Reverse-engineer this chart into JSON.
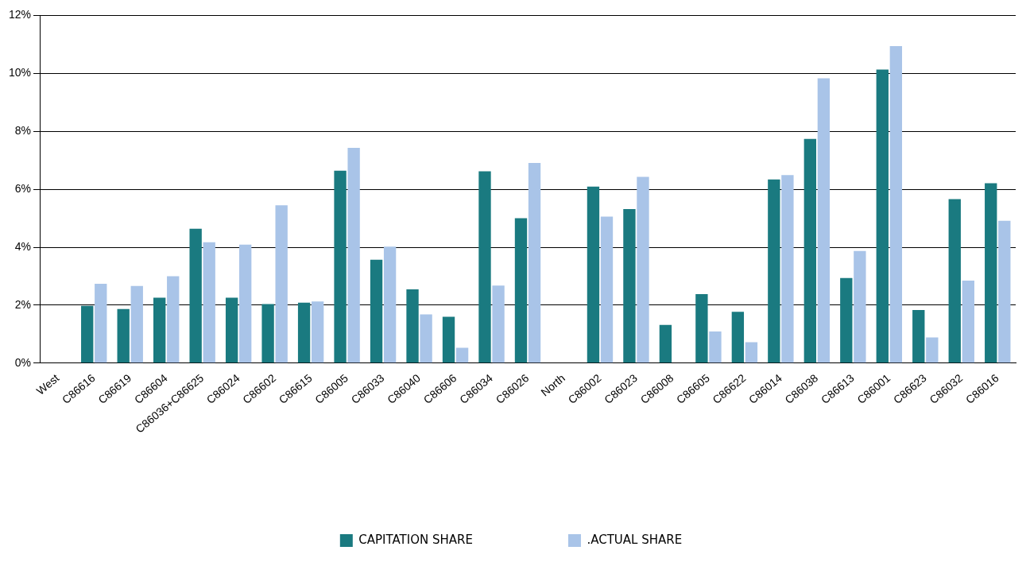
{
  "chart_data": {
    "type": "bar",
    "categories": [
      "West",
      "C86616",
      "C86619",
      "C86604",
      "C86036+C86625",
      "C86024",
      "C86602",
      "C86615",
      "C86005",
      "C86033",
      "C86040",
      "C86606",
      "C86034",
      "C86026",
      "North",
      "C86002",
      "C86023",
      "C86008",
      "C86605",
      "C86622",
      "C86014",
      "C86038",
      "C86613",
      "C86001",
      "C86623",
      "C86032",
      "C86016"
    ],
    "series": [
      {
        "name": "CAPITATION SHARE",
        "color": "#1a7a80",
        "values": [
          null,
          1.98,
          1.87,
          2.26,
          4.64,
          2.26,
          2.04,
          2.09,
          6.64,
          3.57,
          2.55,
          1.6,
          6.62,
          5.0,
          null,
          6.09,
          5.32,
          1.32,
          2.38,
          1.77,
          6.34,
          7.74,
          2.94,
          10.13,
          1.83,
          5.66,
          6.21
        ]
      },
      {
        "name": ".ACTUAL SHARE",
        "color": "#a9c4e8",
        "values": [
          null,
          2.74,
          2.66,
          3.0,
          4.17,
          4.09,
          5.45,
          2.13,
          7.43,
          4.02,
          1.68,
          0.53,
          2.68,
          6.91,
          null,
          5.06,
          6.43,
          null,
          1.09,
          0.72,
          6.49,
          9.83,
          3.87,
          10.94,
          0.89,
          2.85,
          4.91
        ]
      }
    ],
    "ylim": [
      0,
      12
    ],
    "yticks": [
      {
        "value": 0,
        "label": "0%"
      },
      {
        "value": 2,
        "label": "2%"
      },
      {
        "value": 4,
        "label": "4%"
      },
      {
        "value": 6,
        "label": "6%"
      },
      {
        "value": 8,
        "label": "8%"
      },
      {
        "value": 10,
        "label": "10%"
      },
      {
        "value": 12,
        "label": "12%"
      }
    ],
    "grid": "y",
    "legend": "bottom"
  }
}
